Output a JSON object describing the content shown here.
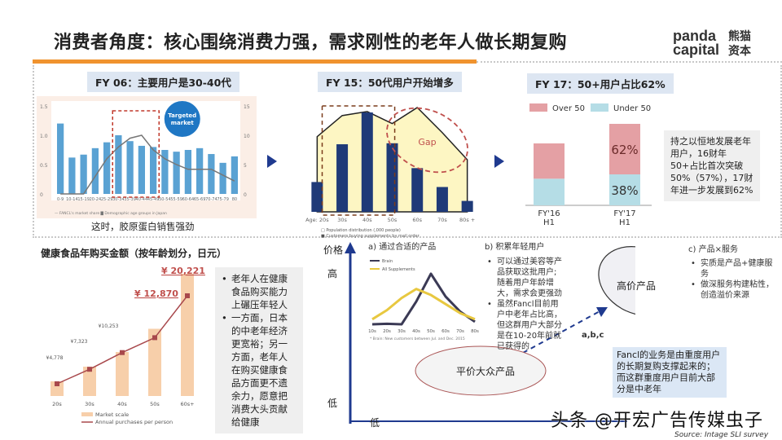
{
  "header": {
    "title": "消费者角度：核心围绕消费力强，需求刚性的老年人做长期复购",
    "logo_en": "panda capital",
    "logo_cn": "熊猫 资本"
  },
  "panel1": {
    "label": "FY 06：主要用户是30-40代",
    "badge": "Targeted market",
    "caption": "这时，胶原蛋白销售强劲",
    "legend": [
      "FANCL's market share",
      "Demographic age groups in Japan"
    ]
  },
  "panel2": {
    "label": "FY 15：50代用户开始增多",
    "gap_label": "Gap",
    "legend": [
      "Population distribution (,000 people)",
      "Customers buying supplements by mail order"
    ]
  },
  "panel3": {
    "label": "FY 17：50+用户占比62%",
    "note": "持之以恒地发展老年用户，16财年50+占比首次突破50%（57%），17财年进一步发展到62%"
  },
  "bottom_left": {
    "title": "健康食品年购买金额（按年龄划分，日元）",
    "bullets": [
      "老年人在健康食品购买能力上碾压年轻人",
      "一方面，日本的中老年经济更宽裕；另一方面，老年人在购买健康食品方面更不遗余力，愿意把消费大头贡献给健康"
    ]
  },
  "strategy": {
    "y_axis_label": "价格",
    "high": "高",
    "low_y": "低",
    "low_x": "低",
    "a_title": "a)   通过合适的产品",
    "b_title": "b)   积累年轻用户",
    "b_bullets": [
      "可以通过美容等产品获取这批用户;随着用户年龄增大，需求会更强劲",
      "虽然Fancl目前用户中老年占比高，但这群用户大部分是在10-20年前就已获得的"
    ],
    "c_title": "c)   产品×服务",
    "c_bullets": [
      "实质是产品+健康服务",
      "做深服务构建粘性，创造溢价来源"
    ],
    "low_price_product": "平价大众产品",
    "high_price_product": "高价产品",
    "arrow_label": "a,b,c",
    "blue_note": "Fancl的业务是由重度用户的长期复购支撑起来的；而这群重度用户目前大部分是中老年",
    "curve_footnote": "* Brain: New customers between Jul. and Dec. 2015"
  },
  "watermark": "头条 @开宏广告传媒虫子",
  "source": "Source: Intage SLI survey",
  "colors": {
    "accent_orange": "#f0932e",
    "navy": "#1f3a8f",
    "bar_blue": "#5aa2d3",
    "over50": "#e4a0a4",
    "under50": "#b5dde6",
    "peach": "#f7cfaa",
    "line_red": "#a8484c"
  },
  "chart_data": [
    {
      "type": "bar",
      "categories": [
        "0-9",
        "10-14",
        "15-19",
        "20-24",
        "25-29",
        "30-34",
        "35-39",
        "40-44",
        "45-49",
        "50-54",
        "55-59",
        "60-64",
        "65-69",
        "70-74",
        "75-79",
        "80 and above"
      ],
      "series": [
        {
          "name": "Demographic age groups in Japan",
          "axis": "left",
          "values": [
            1.2,
            0.62,
            0.67,
            0.78,
            0.88,
            1.0,
            0.9,
            0.82,
            0.8,
            0.75,
            0.72,
            0.75,
            0.78,
            0.68,
            0.53,
            0.64
          ]
        },
        {
          "name": "FANCL's market share",
          "type": "line",
          "axis": "right",
          "values": [
            0,
            0,
            0,
            3,
            6,
            8,
            9.5,
            10,
            7.5,
            6,
            5,
            4.2,
            4.2,
            4.2,
            3.2,
            2.2
          ]
        }
      ],
      "ylim": [
        0,
        1.5
      ],
      "y_ticks": [
        "0",
        "0.5",
        "1.0",
        "1.5"
      ],
      "y2lim": [
        0,
        15
      ],
      "y2_ticks": [
        "0",
        "5",
        "10",
        "15"
      ]
    },
    {
      "type": "bar",
      "categories": [
        "Age: 20s",
        "30s",
        "40s",
        "50s",
        "60s",
        "70s",
        "80s +"
      ],
      "series": [
        {
          "name": "Customers buying supplements by mail order",
          "values": [
            30,
            68,
            100,
            69,
            44,
            25,
            11
          ]
        },
        {
          "name": "Population distribution (,000 people)",
          "type": "area",
          "values": [
            75,
            96,
            100,
            88,
            104,
            79,
            52
          ]
        }
      ]
    },
    {
      "type": "bar",
      "stacked": true,
      "categories": [
        "FY'16 H1",
        "FY'17 H1"
      ],
      "series": [
        {
          "name": "Under 50",
          "values": [
            43,
            38
          ],
          "labels": [
            "",
            "38%"
          ]
        },
        {
          "name": "Over 50",
          "values": [
            57,
            62
          ],
          "labels": [
            "",
            "62%"
          ]
        }
      ]
    },
    {
      "type": "bar",
      "categories": [
        "20s",
        "30s",
        "40s",
        "50s",
        "60s+"
      ],
      "series": [
        {
          "name": "Market scale",
          "values": [
            12,
            24,
            36,
            55,
            100
          ]
        },
        {
          "name": "Annual purchases per person",
          "type": "line",
          "values": [
            4778,
            7323,
            10253,
            12870,
            20221
          ],
          "labels": [
            "¥4,778",
            "¥7,323",
            "¥10,253",
            "¥ 12,870",
            "¥ 20,221"
          ]
        }
      ]
    },
    {
      "type": "line",
      "categories": [
        "10s",
        "20s",
        "30s",
        "40s",
        "50s",
        "60s",
        "70s",
        "80s"
      ],
      "series": [
        {
          "name": "Brain",
          "values": [
            0,
            1,
            0,
            45,
            100,
            55,
            25,
            5
          ]
        },
        {
          "name": "All Supplements",
          "values": [
            10,
            28,
            52,
            70,
            58,
            40,
            22,
            10
          ]
        }
      ]
    }
  ]
}
